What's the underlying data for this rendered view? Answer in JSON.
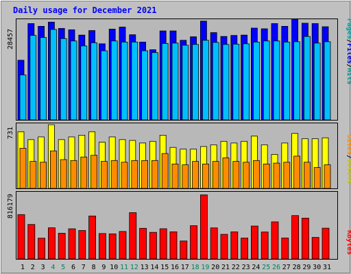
{
  "chart_data": {
    "type": "bar",
    "title": "Daily usage for December 2021",
    "categories": [
      "1",
      "2",
      "3",
      "4",
      "5",
      "6",
      "7",
      "8",
      "9",
      "10",
      "11",
      "12",
      "13",
      "14",
      "15",
      "16",
      "17",
      "18",
      "19",
      "20",
      "21",
      "22",
      "23",
      "24",
      "25",
      "26",
      "27",
      "28",
      "29",
      "30",
      "31"
    ],
    "weekend_days": [
      "4",
      "5",
      "11",
      "12",
      "18",
      "19",
      "25",
      "26"
    ],
    "panels": [
      {
        "id": "pages-files-hits",
        "ymax_label": "28457",
        "ymax": 28457,
        "legend": [
          "Pages",
          "/",
          "Files",
          "/",
          "Hits"
        ],
        "series": [
          {
            "name": "Hits",
            "color": "#0000ff",
            "values": [
              17100,
              27600,
              26800,
              28000,
              26200,
              25800,
              24300,
              25600,
              21800,
              26000,
              26600,
              24400,
              22300,
              20100,
              25500,
              25500,
              22800,
              23800,
              28300,
              25000,
              23900,
              24200,
              24300,
              26300,
              26100,
              27600,
              26800,
              28900,
              27700,
              27600,
              26700
            ]
          },
          {
            "name": "Files",
            "color": "#00bfff",
            "values": [
              12900,
              24200,
              23600,
              25900,
              23300,
              22600,
              21200,
              22100,
              19800,
              22600,
              22300,
              22300,
              19800,
              19300,
              21900,
              22000,
              21400,
              21600,
              22800,
              22200,
              21600,
              21700,
              21800,
              22300,
              22600,
              22600,
              22300,
              22400,
              23900,
              22000,
              22400
            ]
          },
          {
            "name": "Pages",
            "color": "#00c8c8",
            "values": [
              0,
              0,
              0,
              0,
              0,
              0,
              0,
              0,
              0,
              0,
              0,
              0,
              0,
              0,
              0,
              0,
              0,
              0,
              0,
              0,
              0,
              0,
              0,
              0,
              0,
              0,
              0,
              0,
              0,
              0,
              0
            ]
          }
        ]
      },
      {
        "id": "visits-sites",
        "ymax_label": "731",
        "ymax": 731,
        "legend": [
          "Sites",
          "/",
          "Visits"
        ],
        "series": [
          {
            "name": "Visits",
            "color": "#ffff00",
            "values": [
              650,
              560,
              590,
              730,
              560,
              590,
              610,
              650,
              530,
              590,
              560,
              550,
              520,
              540,
              610,
              470,
              450,
              450,
              480,
              500,
              540,
              520,
              540,
              600,
              500,
              390,
              520,
              630,
              570,
              570,
              580
            ]
          },
          {
            "name": "Sites",
            "color": "#ff8c00",
            "values": [
              460,
              310,
              300,
              430,
              330,
              320,
              360,
              380,
              310,
              320,
              300,
              320,
              320,
              320,
              400,
              280,
              270,
              310,
              280,
              310,
              350,
              310,
              300,
              320,
              280,
              290,
              300,
              370,
              300,
              240,
              270
            ]
          }
        ]
      },
      {
        "id": "kbytes",
        "ymax_label": "816179",
        "ymax": 816179,
        "legend": [
          "KBytes"
        ],
        "series": [
          {
            "name": "KBytes",
            "color": "#ff0000",
            "values": [
              550000,
              428000,
              258000,
              387000,
              319000,
              374000,
              353000,
              533000,
              315000,
              311000,
              341000,
              575000,
              380000,
              330000,
              375000,
              337000,
              223000,
              413000,
              795000,
              385000,
              305000,
              336000,
              259000,
              408000,
              334000,
              460000,
              260000,
              538000,
              507000,
              267000,
              382000
            ]
          }
        ]
      }
    ]
  },
  "colors": {
    "background": "#c0c0c0",
    "plot_background": "#b8b8b8",
    "title": "#0000ff",
    "weekday_label": "#000000",
    "weekend_label": "#00805f",
    "legend_pages": "#00a0a0",
    "legend_files": "#0000cc",
    "legend_hits": "#009090",
    "legend_sites": "#ff8c00",
    "legend_visits": "#c8c800",
    "legend_kbytes": "#ff0000"
  }
}
